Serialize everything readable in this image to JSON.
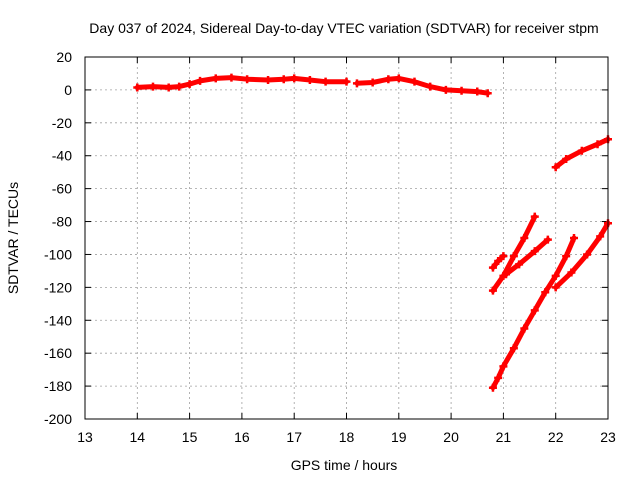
{
  "chart_data": {
    "type": "scatter",
    "title": "Day 037 of 2024, Sidereal Day-to-day VTEC variation (SDTVAR) for receiver stpm",
    "xlabel": "GPS time / hours",
    "ylabel": "SDTVAR / TECUs",
    "xlim": [
      13,
      23
    ],
    "ylim": [
      -200,
      20
    ],
    "xticks": [
      "13",
      "14",
      "15",
      "16",
      "17",
      "18",
      "19",
      "20",
      "21",
      "22",
      "23"
    ],
    "yticks": [
      "20",
      "0",
      "-20",
      "-40",
      "-60",
      "-80",
      "-100",
      "-120",
      "-140",
      "-160",
      "-180",
      "-200"
    ],
    "grid": true,
    "series_color": "#ff0000",
    "series": [
      {
        "name": "segment-1",
        "points": [
          [
            14.0,
            1.5
          ],
          [
            14.3,
            2
          ],
          [
            14.6,
            1.5
          ],
          [
            14.8,
            2
          ],
          [
            15.0,
            3.5
          ],
          [
            15.2,
            5.5
          ],
          [
            15.5,
            7
          ],
          [
            15.8,
            7.5
          ],
          [
            16.1,
            6.5
          ],
          [
            16.5,
            6
          ],
          [
            16.8,
            6.5
          ],
          [
            17.0,
            7
          ],
          [
            17.3,
            6
          ],
          [
            17.6,
            5
          ],
          [
            18.0,
            5
          ]
        ]
      },
      {
        "name": "segment-2",
        "points": [
          [
            18.2,
            4
          ],
          [
            18.5,
            4.5
          ],
          [
            18.8,
            6.5
          ],
          [
            19.0,
            7
          ],
          [
            19.3,
            5
          ],
          [
            19.6,
            2
          ],
          [
            19.9,
            0
          ],
          [
            20.2,
            -0.5
          ],
          [
            20.5,
            -1
          ],
          [
            20.7,
            -2
          ]
        ]
      },
      {
        "name": "segment-3",
        "points": [
          [
            20.8,
            -108
          ],
          [
            20.9,
            -104
          ],
          [
            21.0,
            -101
          ]
        ]
      },
      {
        "name": "segment-4",
        "points": [
          [
            20.8,
            -122
          ],
          [
            21.0,
            -113
          ],
          [
            21.2,
            -101
          ],
          [
            21.4,
            -90
          ],
          [
            21.6,
            -77
          ]
        ]
      },
      {
        "name": "segment-5",
        "points": [
          [
            20.8,
            -181
          ],
          [
            20.9,
            -175
          ],
          [
            21.0,
            -168
          ],
          [
            21.2,
            -157
          ],
          [
            21.4,
            -145
          ],
          [
            21.6,
            -134
          ],
          [
            21.8,
            -123
          ],
          [
            22.0,
            -113
          ],
          [
            22.2,
            -101
          ],
          [
            22.35,
            -90
          ]
        ]
      },
      {
        "name": "segment-6",
        "points": [
          [
            21.05,
            -112
          ],
          [
            21.3,
            -106
          ],
          [
            21.6,
            -98
          ],
          [
            21.85,
            -91
          ]
        ]
      },
      {
        "name": "segment-7",
        "points": [
          [
            22.0,
            -120
          ],
          [
            22.3,
            -111
          ],
          [
            22.6,
            -100
          ],
          [
            22.85,
            -89
          ],
          [
            23.0,
            -81
          ]
        ]
      },
      {
        "name": "segment-8",
        "points": [
          [
            22.0,
            -47
          ],
          [
            22.2,
            -42
          ],
          [
            22.5,
            -37
          ],
          [
            22.8,
            -33
          ],
          [
            23.0,
            -30
          ]
        ]
      }
    ]
  }
}
